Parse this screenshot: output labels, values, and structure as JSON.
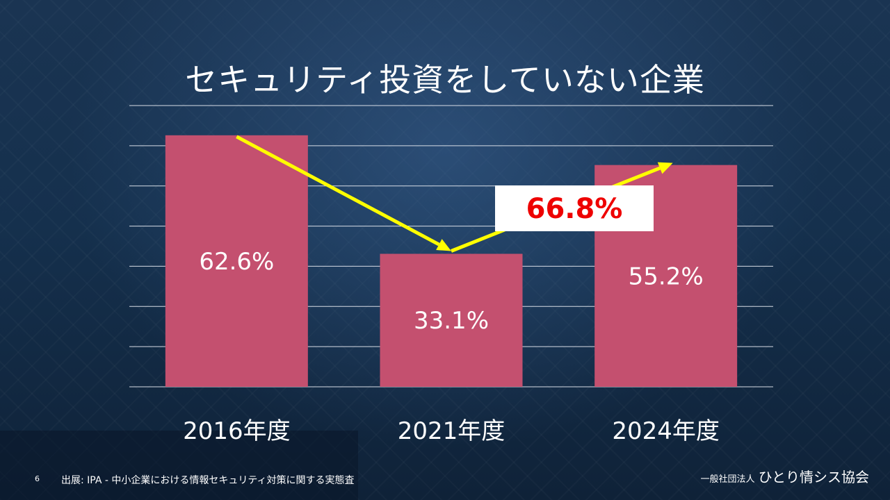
{
  "slide": {
    "title": "セキュリティ投資をしていない企業",
    "page_number": "6",
    "source": "出展: IPA - 中小企業における情報セキュリティ対策に関する実態査",
    "organization_prefix": "一般社団法人",
    "organization_name": "ひとり情シス協会"
  },
  "chart_data": {
    "type": "bar",
    "categories": [
      "2016年度",
      "2021年度",
      "2024年度"
    ],
    "values": [
      62.6,
      33.1,
      55.2
    ],
    "value_labels": [
      "62.6%",
      "33.1%",
      "55.2%"
    ],
    "ylim": [
      0,
      70
    ],
    "grid": true,
    "annotation": {
      "label": "66.8%",
      "note": "increase from 2021 to 2024"
    }
  },
  "colors": {
    "bar": "#c4506f",
    "grid": "#d8dde6",
    "arrow": "#ffff00",
    "annotation_text": "#ee0000",
    "annotation_box": "#ffffff"
  }
}
